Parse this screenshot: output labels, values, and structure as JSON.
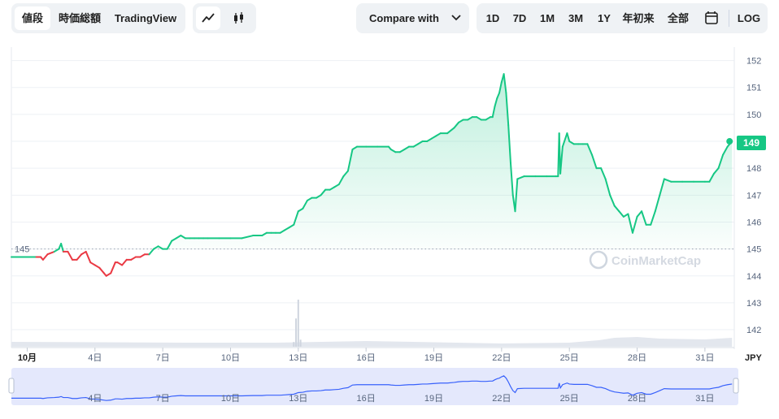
{
  "toolbar": {
    "tabs": [
      "値段",
      "時価総額",
      "TradingView"
    ],
    "active_tab": "値段",
    "chart_style_icons": [
      "line-chart-icon",
      "candlestick-icon"
    ],
    "compare_label": "Compare with",
    "ranges": [
      "1D",
      "7D",
      "1M",
      "3M",
      "1Y",
      "年初来",
      "全部"
    ],
    "calendar_icon": "calendar-icon",
    "log_label": "LOG"
  },
  "watermark": "CoinMarketCap",
  "colors": {
    "up": "#16c784",
    "down": "#ea3943",
    "accent_fill": "#d7f5e6",
    "navigator_fill": "#e4e8fc",
    "navigator_line": "#3861fb"
  },
  "chart_data": {
    "type": "line",
    "currency": "JPY",
    "ylim": [
      141.7,
      152.5
    ],
    "y_ticks": [
      152,
      151,
      150,
      149,
      148,
      147,
      146,
      145,
      144,
      143,
      142
    ],
    "x_range": [
      0.3,
      32.3
    ],
    "x_ticks": [
      {
        "x": 1,
        "label": "10月"
      },
      {
        "x": 4,
        "label": "4日"
      },
      {
        "x": 7,
        "label": "7日"
      },
      {
        "x": 10,
        "label": "10日"
      },
      {
        "x": 13,
        "label": "13日"
      },
      {
        "x": 16,
        "label": "16日"
      },
      {
        "x": 19,
        "label": "19日"
      },
      {
        "x": 22,
        "label": "22日"
      },
      {
        "x": 25,
        "label": "25日"
      },
      {
        "x": 28,
        "label": "28日"
      },
      {
        "x": 31,
        "label": "31日"
      }
    ],
    "reference_value": 145,
    "current_value": "149",
    "series": [
      {
        "x": [
          0.3,
          1.4,
          1.6,
          1.7,
          1.9,
          2.2,
          2.4,
          2.5,
          2.6,
          2.8,
          3.0,
          3.2,
          3.4,
          3.6,
          3.8,
          4.0,
          4.2,
          4.4,
          4.5,
          4.7,
          4.9,
          5.0,
          5.2,
          5.4,
          5.6,
          5.8,
          6.0,
          6.2,
          6.4,
          6.6,
          6.8,
          7.0,
          7.2,
          7.4,
          7.6,
          7.8,
          8.0,
          8.2,
          8.4,
          8.6,
          8.8,
          9.0,
          9.5,
          10.0,
          10.5,
          11.0,
          11.2,
          11.4,
          11.6,
          11.8,
          12.0,
          12.2,
          12.4,
          12.6,
          12.8,
          13.0,
          13.2,
          13.4,
          13.6,
          13.8,
          14.0,
          14.2,
          14.4,
          14.6,
          14.8,
          15.0,
          15.2,
          15.4,
          15.6,
          16.0,
          16.5,
          17.0,
          17.1,
          17.3,
          17.5,
          17.7,
          17.9,
          18.1,
          18.3,
          18.5,
          18.7,
          18.9,
          19.1,
          19.3,
          19.6,
          19.9,
          20.1,
          20.3,
          20.5,
          20.7,
          20.9,
          21.1,
          21.3,
          21.5,
          21.6,
          21.7,
          21.8,
          21.9,
          22.0,
          22.1,
          22.2,
          22.3,
          22.4,
          22.5,
          22.6,
          22.7,
          23.0,
          23.5,
          24.0,
          24.4,
          24.5,
          24.55,
          24.6,
          24.7,
          24.9,
          25.0,
          25.2,
          25.4,
          25.6,
          25.8,
          26.0,
          26.2,
          26.4,
          26.6,
          26.8,
          27.0,
          27.2,
          27.4,
          27.6,
          27.8,
          28.0,
          28.2,
          28.4,
          28.6,
          28.8,
          29.0,
          29.2,
          29.5,
          30.0,
          30.5,
          31.0,
          31.2,
          31.4,
          31.6,
          31.8,
          32.0,
          32.2
        ],
        "y": [
          144.7,
          144.7,
          144.7,
          144.6,
          144.8,
          144.9,
          145.0,
          145.2,
          144.9,
          144.9,
          144.6,
          144.6,
          144.8,
          144.9,
          144.5,
          144.4,
          144.3,
          144.1,
          144.0,
          144.1,
          144.5,
          144.5,
          144.4,
          144.6,
          144.6,
          144.7,
          144.7,
          144.8,
          144.8,
          145.0,
          145.1,
          145.0,
          145.0,
          145.3,
          145.4,
          145.5,
          145.4,
          145.4,
          145.4,
          145.4,
          145.4,
          145.4,
          145.4,
          145.4,
          145.4,
          145.5,
          145.5,
          145.5,
          145.6,
          145.6,
          145.6,
          145.6,
          145.7,
          145.8,
          145.9,
          146.4,
          146.5,
          146.8,
          146.9,
          146.9,
          147.0,
          147.2,
          147.2,
          147.3,
          147.4,
          147.7,
          147.9,
          148.7,
          148.8,
          148.8,
          148.8,
          148.8,
          148.7,
          148.6,
          148.6,
          148.7,
          148.8,
          148.8,
          148.9,
          149.0,
          149.0,
          149.1,
          149.2,
          149.3,
          149.3,
          149.5,
          149.7,
          149.8,
          149.8,
          149.9,
          149.9,
          149.8,
          149.8,
          149.9,
          149.9,
          150.3,
          150.6,
          150.8,
          151.2,
          151.5,
          150.8,
          149.6,
          148.2,
          147.0,
          146.4,
          147.6,
          147.7,
          147.7,
          147.7,
          147.7,
          147.7,
          149.3,
          147.8,
          148.8,
          149.3,
          149.0,
          148.9,
          148.9,
          148.9,
          148.9,
          148.5,
          148.0,
          148.0,
          147.6,
          147.0,
          146.6,
          146.4,
          146.2,
          146.3,
          145.6,
          146.2,
          146.4,
          145.9,
          145.9,
          146.4,
          147.0,
          147.6,
          147.5,
          147.5,
          147.5,
          147.5,
          147.5,
          147.8,
          148.0,
          148.5,
          148.8,
          149.0
        ]
      }
    ],
    "volume": {
      "x": [
        12.8,
        12.9,
        13.0,
        13.1
      ],
      "values": [
        0.1,
        0.6,
        1.0,
        0.15
      ],
      "baseline_x": [
        0.3,
        8.0,
        12.0,
        16.0,
        20.0,
        22.0,
        25.0,
        26.3,
        27.0,
        28.0,
        29.0,
        31.0,
        32.2
      ],
      "baseline_values": [
        0.12,
        0.1,
        0.1,
        0.14,
        0.1,
        0.08,
        0.1,
        0.16,
        0.22,
        0.24,
        0.2,
        0.18,
        0.22
      ]
    }
  }
}
